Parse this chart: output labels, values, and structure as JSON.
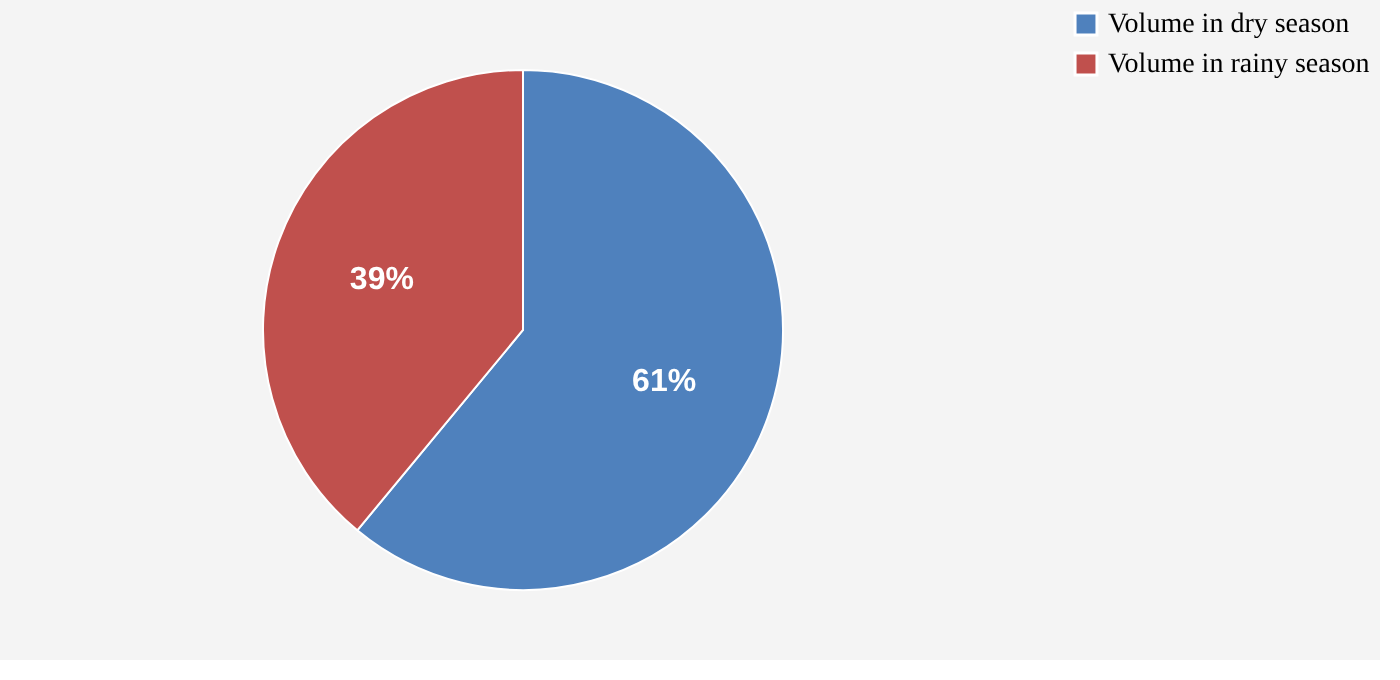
{
  "chart_data": {
    "type": "pie",
    "categories": [
      "Volume in dry season",
      "Volume in rainy season"
    ],
    "values": [
      61,
      39
    ],
    "colors": [
      "#4f81bd",
      "#c0504d"
    ],
    "value_labels": [
      "61%",
      "39%"
    ],
    "legend": "right"
  }
}
